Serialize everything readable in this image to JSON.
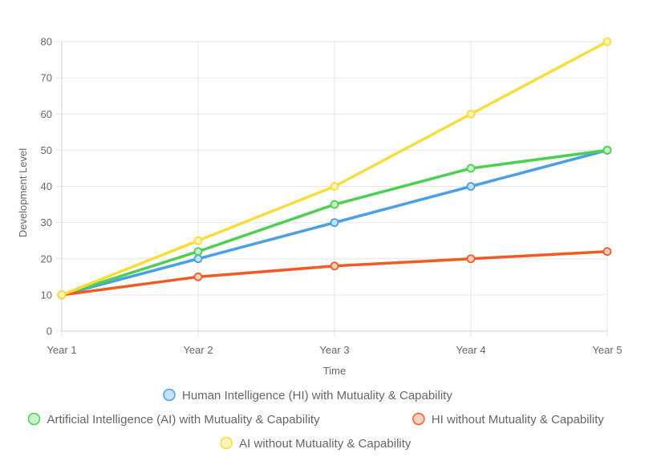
{
  "chart_data": {
    "type": "line",
    "title": "",
    "xlabel": "Time",
    "ylabel": "Development Level",
    "categories": [
      "Year 1",
      "Year 2",
      "Year 3",
      "Year 4",
      "Year 5"
    ],
    "ylim": [
      0,
      80
    ],
    "yticks": [
      0,
      10,
      20,
      30,
      40,
      50,
      60,
      70,
      80
    ],
    "grid": true,
    "legend_position": "bottom",
    "series": [
      {
        "name": "Human Intelligence (HI) with Mutuality & Capability",
        "values": [
          10,
          20,
          30,
          40,
          50
        ],
        "color": "#4a9fe6",
        "fill": "#c6e0f7"
      },
      {
        "name": "Artificial Intelligence (AI) with Mutuality & Capability",
        "values": [
          10,
          22,
          35,
          45,
          50
        ],
        "color": "#4cd051",
        "fill": "#c8f0c9"
      },
      {
        "name": "HI without Mutuality & Capability",
        "values": [
          10,
          15,
          18,
          20,
          22
        ],
        "color": "#f25a24",
        "fill": "#fcd0c0"
      },
      {
        "name": "AI without Mutuality & Capability",
        "values": [
          10,
          25,
          40,
          60,
          80
        ],
        "color": "#f7dc3c",
        "fill": "#fbf2b8"
      }
    ]
  }
}
